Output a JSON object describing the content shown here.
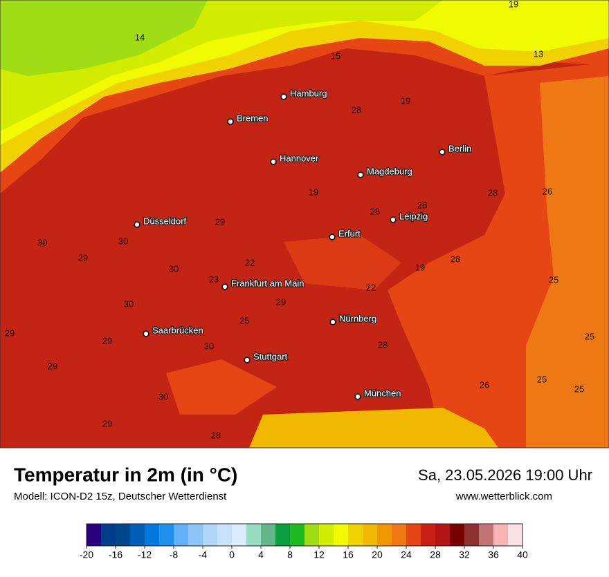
{
  "title": "Temperatur in 2m (in °C)",
  "subtitle": "Modell: ICON-D2 15z, Deutscher Wetterdienst",
  "datetime": "Sa, 23.05.2026 19:00 Uhr",
  "website": "www.wetterblick.com",
  "cities": [
    "Hamburg",
    "Bremen",
    "Hannover",
    "Berlin",
    "Magdeburg",
    "Leipzig",
    "Düsseldorf",
    "Erfurt",
    "Frankfurt am Main",
    "Saarbrücken",
    "Nürnberg",
    "Stuttgart",
    "München"
  ],
  "map_labels": [
    14,
    19,
    15,
    13,
    28,
    19,
    19,
    28,
    28,
    26,
    28,
    29,
    30,
    30,
    29,
    30,
    22,
    19,
    28,
    23,
    22,
    25,
    30,
    29,
    25,
    29,
    29,
    30,
    28,
    25,
    29,
    26,
    25,
    25,
    30,
    29,
    28
  ],
  "colorbar": {
    "ticks": [
      -20,
      -16,
      -12,
      -8,
      -4,
      0,
      4,
      8,
      12,
      16,
      20,
      24,
      28,
      32,
      36,
      40
    ],
    "colors": [
      "#2a0080",
      "#003c8c",
      "#00468c",
      "#005cb4",
      "#0078dc",
      "#1e90f0",
      "#64b0f8",
      "#8cc4f8",
      "#b0d4fa",
      "#c8e2fc",
      "#dcecfc",
      "#96dcc0",
      "#64b48c",
      "#0a9e3c",
      "#1eb91e",
      "#a0dc14",
      "#d2ec00",
      "#f0fa00",
      "#f0d200",
      "#f0b900",
      "#f09600",
      "#ee7814",
      "#e64614",
      "#c81e14",
      "#b41414",
      "#780000",
      "#8c3232",
      "#c07474",
      "#f8b4b4",
      "#fce0e8"
    ]
  }
}
